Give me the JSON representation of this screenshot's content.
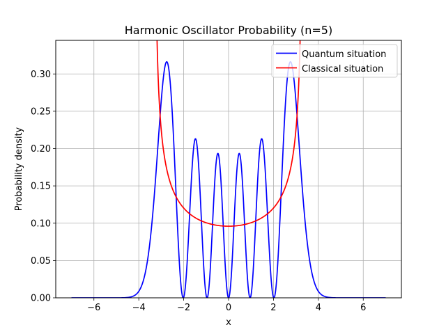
{
  "chart_data": {
    "type": "line",
    "title": "Harmonic Oscillator Probability (n=5)",
    "xlabel": "x",
    "ylabel": "Probability density",
    "xlim": [
      -7.7,
      7.7
    ],
    "ylim": [
      0,
      0.345
    ],
    "xticks": [
      -6,
      -4,
      -2,
      0,
      2,
      4,
      6
    ],
    "xtick_labels": [
      "−6",
      "−4",
      "−2",
      "0",
      "2",
      "4",
      "6"
    ],
    "yticks": [
      0.0,
      0.05,
      0.1,
      0.15,
      0.2,
      0.25,
      0.3
    ],
    "ytick_labels": [
      "0.00",
      "0.05",
      "0.10",
      "0.15",
      "0.20",
      "0.25",
      "0.30"
    ],
    "grid": true,
    "legend_position": "top-right",
    "x_domain": [
      -7,
      7
    ],
    "series": [
      {
        "name": "Quantum situation",
        "color": "#0000ff",
        "formula": "quantum_n5",
        "peaks": [
          {
            "x": -2.76,
            "y": 0.316
          },
          {
            "x": -1.47,
            "y": 0.213
          },
          {
            "x": -0.48,
            "y": 0.194
          },
          {
            "x": 0.48,
            "y": 0.194
          },
          {
            "x": 1.47,
            "y": 0.213
          },
          {
            "x": 2.76,
            "y": 0.316
          }
        ]
      },
      {
        "name": "Classical situation",
        "color": "#ff0000",
        "formula": "classical",
        "turning_points": [
          -3.317,
          3.317
        ],
        "min": {
          "x": 0,
          "y": 0.096
        }
      }
    ]
  }
}
